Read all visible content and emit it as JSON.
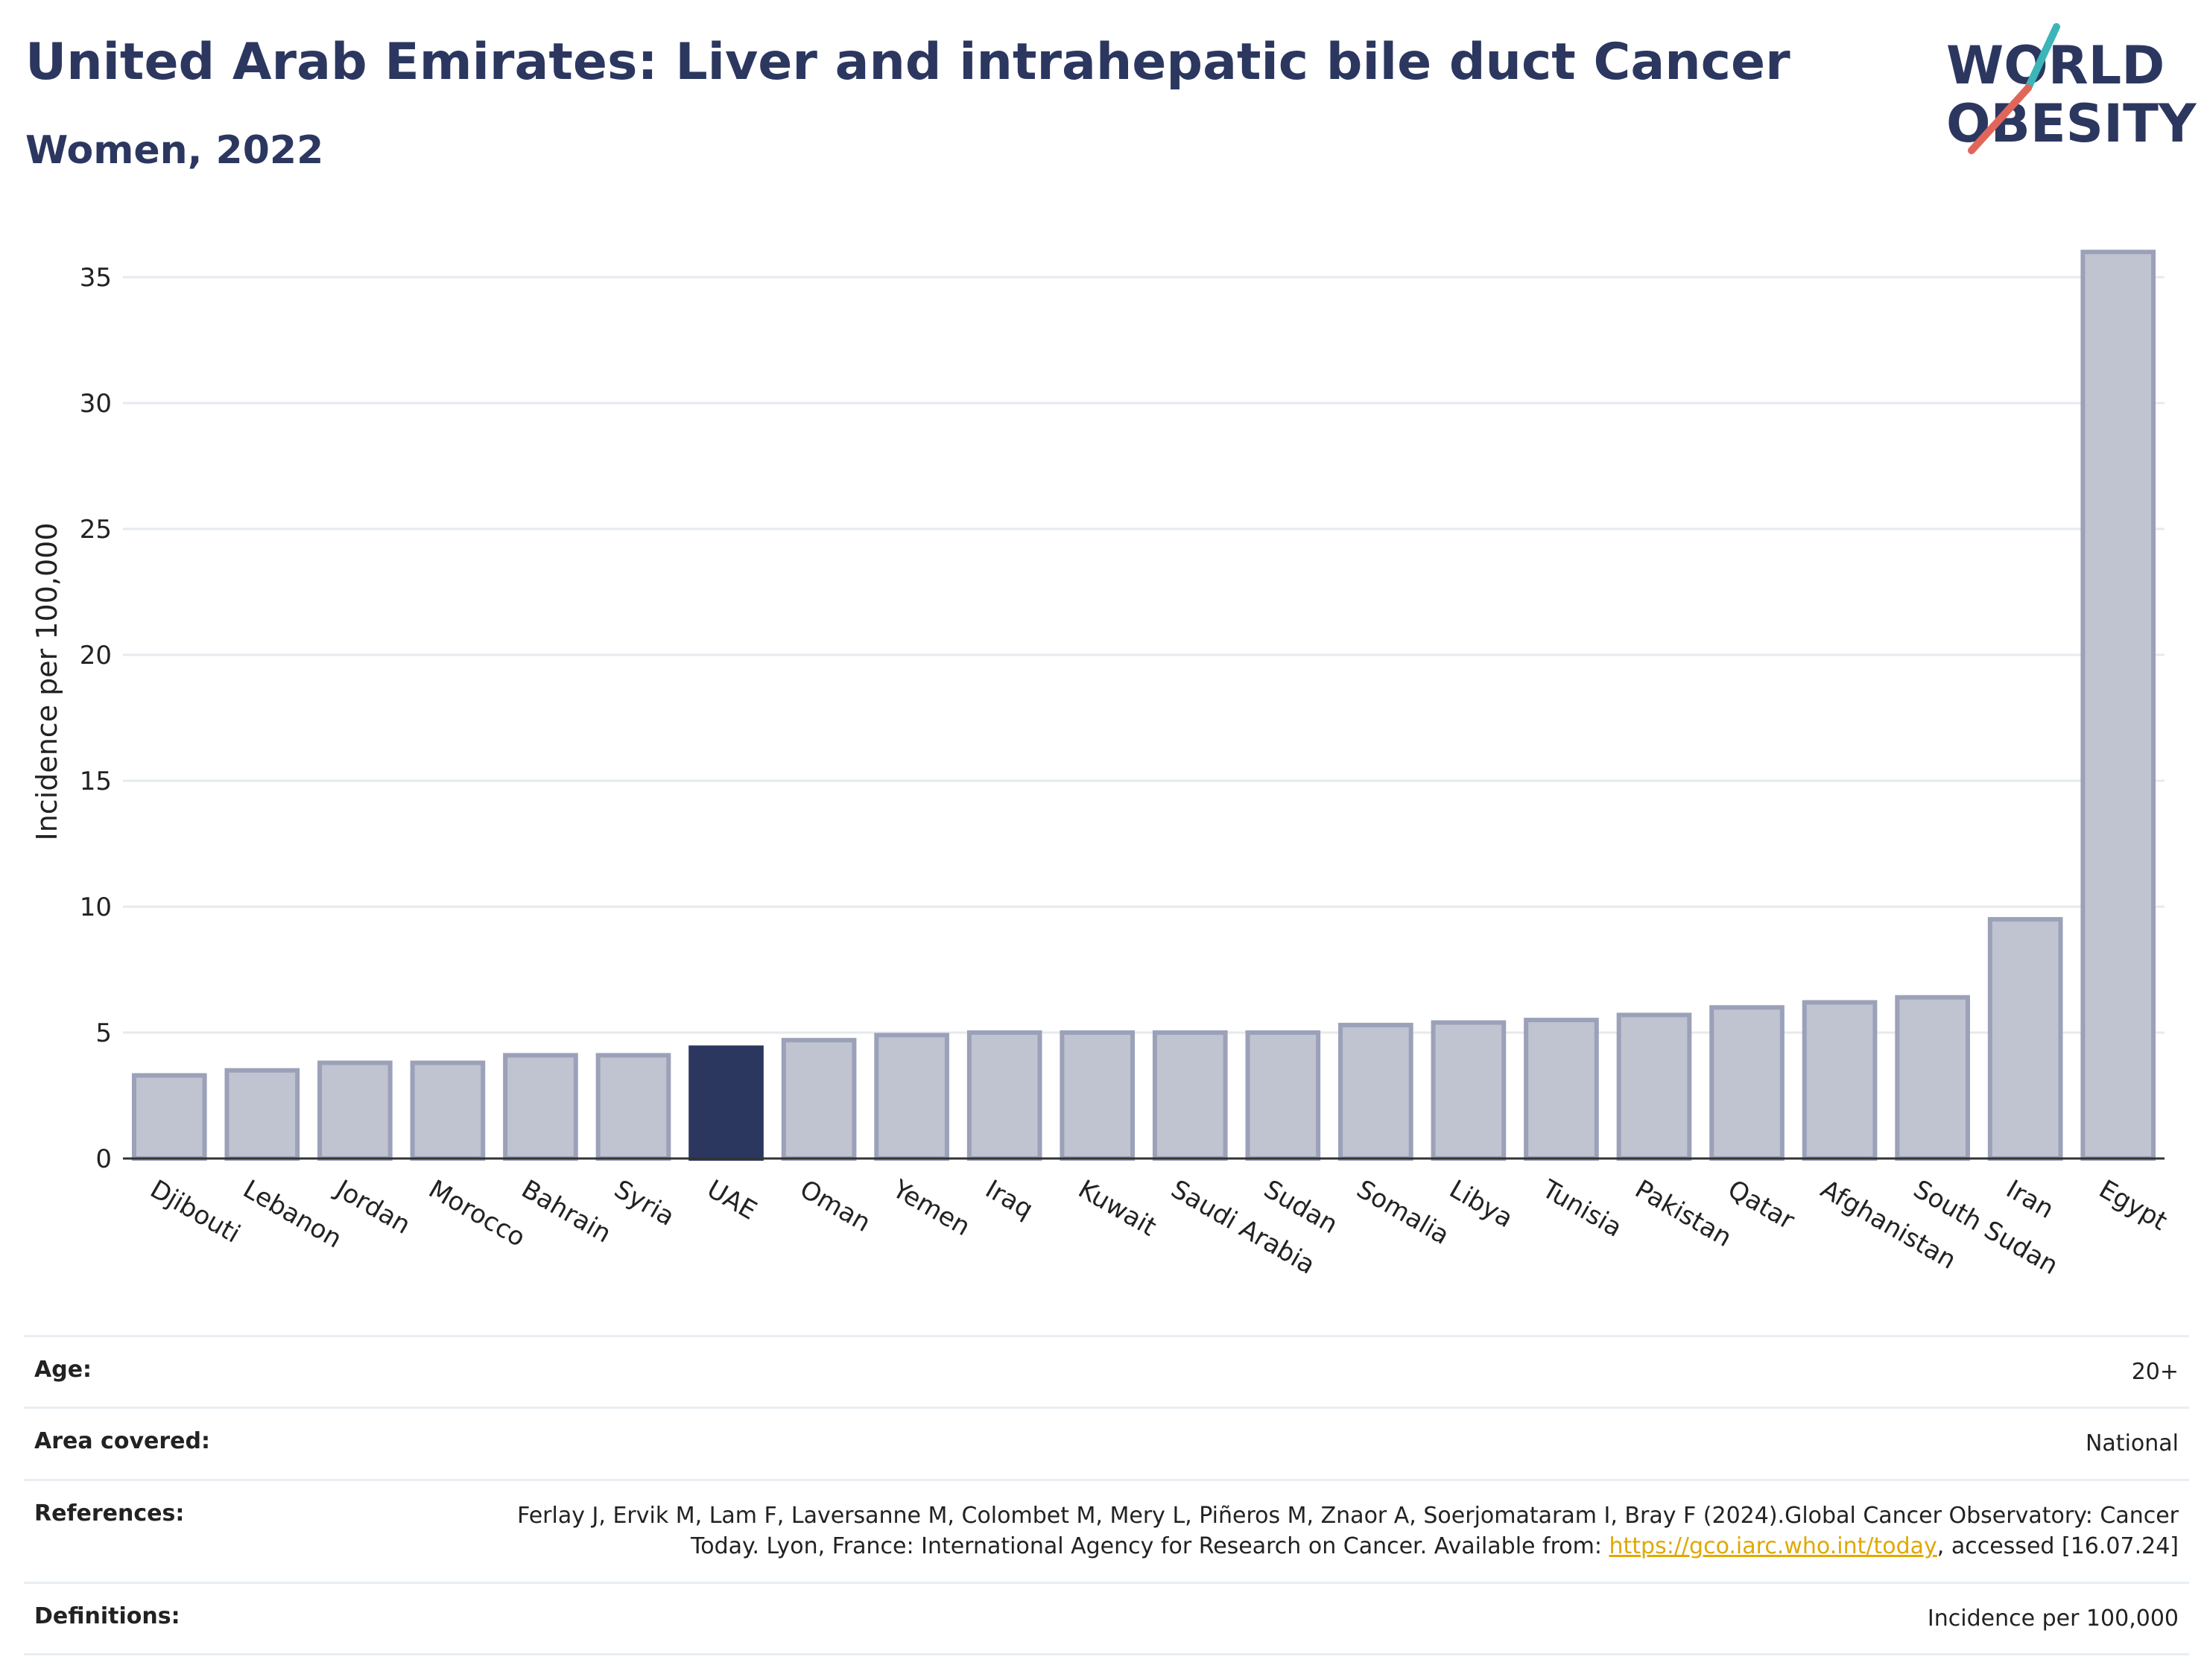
{
  "header": {
    "title": "United Arab Emirates: Liver and intrahepatic bile duct Cancer",
    "subtitle": "Women, 2022"
  },
  "logo": {
    "line1": "WORLD",
    "line2": "OBESITY",
    "colors": {
      "text": "#2c3760",
      "slash_teal": "#3bb5b8",
      "slash_red": "#e0665a"
    }
  },
  "chart_data": {
    "type": "bar",
    "ylabel": "Incidence per 100,000",
    "xlabel": "",
    "ylim": [
      0,
      37
    ],
    "yticks": [
      0,
      5,
      10,
      15,
      20,
      25,
      30,
      35
    ],
    "grid": true,
    "highlight": "UAE",
    "colors": {
      "default_fill": "#c0c3d0",
      "default_stroke": "#9ba1b8",
      "highlight_fill": "#2c3760"
    },
    "categories": [
      "Djibouti",
      "Lebanon",
      "Jordan",
      "Morocco",
      "Bahrain",
      "Syria",
      "UAE",
      "Oman",
      "Yemen",
      "Iraq",
      "Kuwait",
      "Saudi Arabia",
      "Sudan",
      "Somalia",
      "Libya",
      "Tunisia",
      "Pakistan",
      "Qatar",
      "Afghanistan",
      "South Sudan",
      "Iran",
      "Egypt"
    ],
    "values": [
      3.3,
      3.5,
      3.8,
      3.8,
      4.1,
      4.1,
      4.4,
      4.7,
      4.9,
      5.0,
      5.0,
      5.0,
      5.0,
      5.3,
      5.4,
      5.5,
      5.7,
      6.0,
      6.2,
      6.4,
      9.5,
      36.0
    ]
  },
  "info": {
    "age_label": "Age:",
    "age_value": "20+",
    "area_label": "Area covered:",
    "area_value": "National",
    "references_label": "References:",
    "references_text": "Ferlay J, Ervik M, Lam F, Laversanne M, Colombet M, Mery L, Piñeros M, Znaor A, Soerjomataram I, Bray F (2024).Global Cancer Observatory: Cancer Today. Lyon, France: International Agency for Research on Cancer. Available from:",
    "references_link": "https://gco.iarc.who.int/today",
    "references_tail": ", accessed [16.07.24]",
    "definitions_label": "Definitions:",
    "definitions_value": "Incidence per 100,000"
  }
}
